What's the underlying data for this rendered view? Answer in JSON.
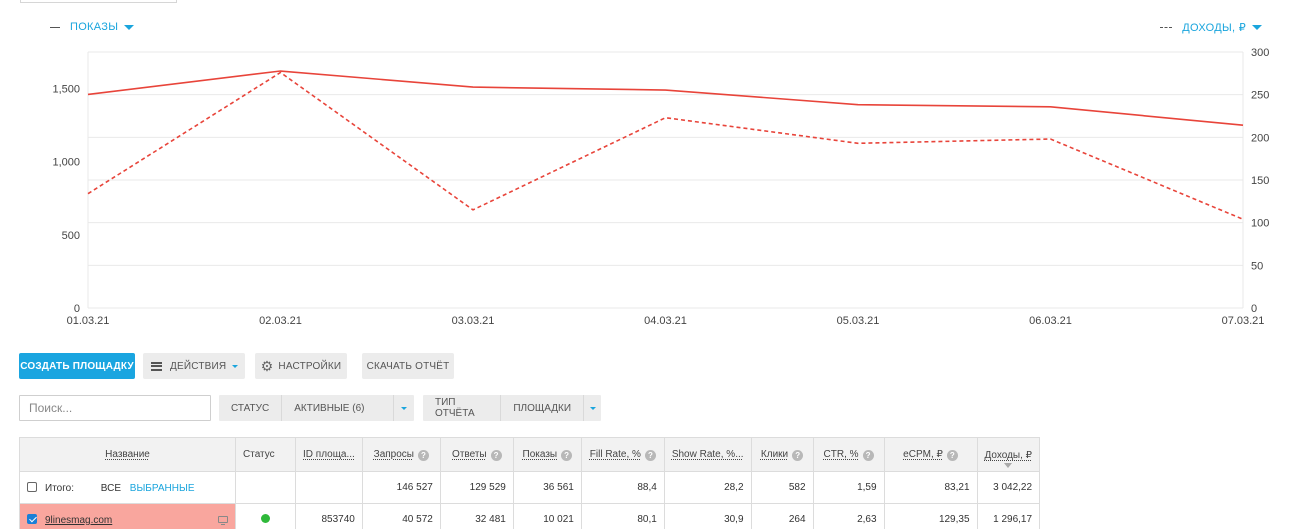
{
  "legend": {
    "left": "Показы",
    "right": "Доходы, ₽"
  },
  "chart_data": {
    "type": "line",
    "x": [
      "01.03.21",
      "02.03.21",
      "03.03.21",
      "04.03.21",
      "05.03.21",
      "06.03.21",
      "07.03.21"
    ],
    "series": [
      {
        "name": "Показы",
        "axis": "left",
        "style": "solid",
        "values": [
          1460,
          1620,
          1510,
          1490,
          1390,
          1375,
          1250
        ]
      },
      {
        "name": "Доходы, ₽",
        "axis": "right",
        "style": "dashed",
        "values": [
          134,
          276,
          115,
          223,
          193,
          198,
          104
        ]
      }
    ],
    "left_ticks": [
      "0",
      "500",
      "1,000",
      "1,500"
    ],
    "right_ticks": [
      "0",
      "50",
      "100",
      "150",
      "200",
      "250",
      "300"
    ],
    "left_range": [
      0,
      1750
    ],
    "right_range": [
      0,
      300
    ],
    "grid": true,
    "color": "#e8443a"
  },
  "toolbar": {
    "create": "Создать площадку",
    "actions": "Действия",
    "settings": "Настройки",
    "download": "Скачать отчёт"
  },
  "filters": {
    "search_placeholder": "Поиск...",
    "status_label": "Статус",
    "status_value": "Активные (6)",
    "report_type_label": "Тип отчёта",
    "report_type_value": "Площадки"
  },
  "table": {
    "headers": {
      "name": "Название",
      "status": "Статус",
      "id": "ID площа...",
      "requests": "Запросы",
      "responses": "Ответы",
      "impressions": "Показы",
      "fill_rate": "Fill Rate, %",
      "show_rate": "Show Rate, %...",
      "clicks": "Клики",
      "ctr": "CTR, %",
      "ecpm": "eCPM, ₽",
      "revenue": "Доходы, ₽"
    },
    "totals": {
      "label": "Итого:",
      "all": "Все",
      "selected": "Выбранные",
      "requests": "146 527",
      "responses": "129 529",
      "impressions": "36 561",
      "fill_rate": "88,4",
      "show_rate": "28,2",
      "clicks": "582",
      "ctr": "1,59",
      "ecpm": "83,21",
      "revenue": "3 042,22"
    },
    "row": {
      "name": "9linesmag.com",
      "id": "853740",
      "requests": "40 572",
      "responses": "32 481",
      "impressions": "10 021",
      "fill_rate": "80,1",
      "show_rate": "30,9",
      "clicks": "264",
      "ctr": "2,63",
      "ecpm": "129,35",
      "revenue": "1 296,17"
    }
  }
}
